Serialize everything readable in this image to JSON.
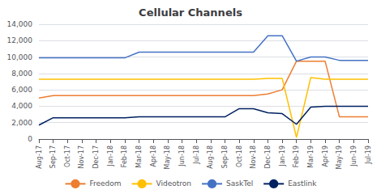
{
  "chart_data": {
    "type": "line",
    "title": "Cellular Channels",
    "categories": [
      "Aug-17",
      "Sep-17",
      "Oct-17",
      "Nov-17",
      "Dec-17",
      "Jan-18",
      "Feb-18",
      "Mar-18",
      "Apr-18",
      "May-18",
      "Jun-18",
      "Jul-18",
      "Aug-18",
      "Sep-18",
      "Oct-18",
      "Nov-18",
      "Dec-18",
      "Jan-19",
      "Feb-19",
      "Mar-19",
      "Apr-19",
      "May-19",
      "Jun-19",
      "Jul-19"
    ],
    "series": [
      {
        "name": "Freedom",
        "color": "#ED7D31",
        "values": [
          5000,
          5300,
          5300,
          5300,
          5300,
          5300,
          5300,
          5300,
          5300,
          5300,
          5300,
          5300,
          5300,
          5300,
          5300,
          5300,
          5500,
          6000,
          9500,
          9500,
          9500,
          2700,
          2700,
          2700
        ]
      },
      {
        "name": "Videotron",
        "color": "#FFC000",
        "values": [
          7300,
          7300,
          7300,
          7300,
          7300,
          7300,
          7300,
          7300,
          7300,
          7300,
          7300,
          7300,
          7300,
          7300,
          7300,
          7300,
          7400,
          7400,
          200,
          7500,
          7300,
          7300,
          7300,
          7300
        ]
      },
      {
        "name": "SaskTel",
        "color": "#4472C4",
        "values": [
          9900,
          9900,
          9900,
          9900,
          9900,
          9900,
          9900,
          10600,
          10600,
          10600,
          10600,
          10600,
          10600,
          10600,
          10600,
          10600,
          12600,
          12600,
          9500,
          10000,
          10000,
          9600,
          9600,
          9600
        ]
      },
      {
        "name": "Eastlink",
        "color": "#002060",
        "values": [
          1700,
          2600,
          2600,
          2600,
          2600,
          2600,
          2600,
          2700,
          2700,
          2700,
          2700,
          2700,
          2700,
          2700,
          3700,
          3700,
          3200,
          3100,
          1800,
          3900,
          4000,
          4000,
          4000,
          4000
        ]
      }
    ],
    "ylim": [
      0,
      14000
    ],
    "yticks": [
      0,
      {
        "value": 2000,
        "label": "2,000"
      },
      {
        "value": 4000,
        "label": "4,000"
      },
      {
        "value": 6000,
        "label": "6,000"
      },
      {
        "value": 8000,
        "label": "8,000"
      },
      {
        "value": 10000,
        "label": "10,000"
      },
      {
        "value": 12000,
        "label": "12,000"
      },
      {
        "value": 14000,
        "label": "14,000"
      }
    ],
    "grid": true,
    "legend": "bottom"
  }
}
